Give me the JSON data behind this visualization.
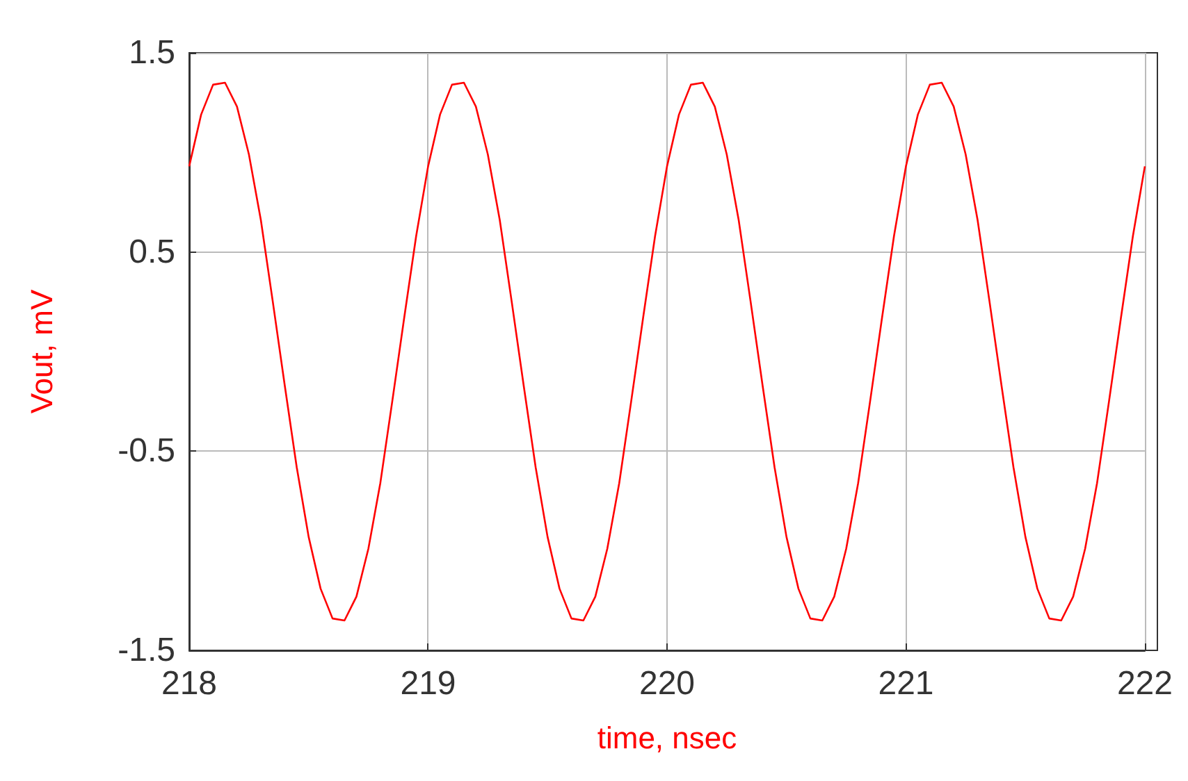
{
  "chart_data": {
    "type": "line",
    "xlabel": "time, nsec",
    "ylabel": "Vout, mV",
    "x": [
      218,
      218.05,
      218.1,
      218.15,
      218.2,
      218.25,
      218.3,
      218.35,
      218.4,
      218.45,
      218.5,
      218.55,
      218.6,
      218.65,
      218.7,
      218.75,
      218.8,
      218.85,
      218.9,
      218.95,
      219,
      219.05,
      219.1,
      219.15,
      219.2,
      219.25,
      219.3,
      219.35,
      219.4,
      219.45,
      219.5,
      219.55,
      219.6,
      219.65,
      219.7,
      219.75,
      219.8,
      219.85,
      219.9,
      219.95,
      220,
      220.05,
      220.1,
      220.15,
      220.2,
      220.25,
      220.3,
      220.35,
      220.4,
      220.45,
      220.5,
      220.55,
      220.6,
      220.65,
      220.7,
      220.75,
      220.8,
      220.85,
      220.9,
      220.95,
      221,
      221.05,
      221.1,
      221.15,
      221.2,
      221.25,
      221.3,
      221.35,
      221.4,
      221.45,
      221.5,
      221.55,
      221.6,
      221.65,
      221.7,
      221.75,
      221.8,
      221.85,
      221.9,
      221.95,
      222
    ],
    "series": [
      {
        "color": "#ff0000",
        "values": [
          0.93,
          1.19,
          1.34,
          1.35,
          1.23,
          0.99,
          0.66,
          0.25,
          -0.17,
          -0.58,
          -0.93,
          -1.19,
          -1.34,
          -1.35,
          -1.23,
          -0.99,
          -0.66,
          -0.25,
          0.17,
          0.58,
          0.93,
          1.19,
          1.34,
          1.35,
          1.23,
          0.99,
          0.66,
          0.25,
          -0.17,
          -0.58,
          -0.93,
          -1.19,
          -1.34,
          -1.35,
          -1.23,
          -0.99,
          -0.66,
          -0.25,
          0.17,
          0.58,
          0.93,
          1.19,
          1.34,
          1.35,
          1.23,
          0.99,
          0.66,
          0.25,
          -0.17,
          -0.58,
          -0.93,
          -1.19,
          -1.34,
          -1.35,
          -1.23,
          -0.99,
          -0.66,
          -0.25,
          0.17,
          0.58,
          0.93,
          1.19,
          1.34,
          1.35,
          1.23,
          0.99,
          0.66,
          0.25,
          -0.17,
          -0.58,
          -0.93,
          -1.19,
          -1.34,
          -1.35,
          -1.23,
          -0.99,
          -0.66,
          -0.25,
          0.17,
          0.58,
          0.93
        ]
      }
    ],
    "xlim": [
      218,
      222
    ],
    "xticks": [
      218,
      219,
      220,
      221,
      222
    ],
    "ylim": [
      -1.5,
      1.5
    ],
    "yticks": [
      -1.5,
      -0.5,
      0.5,
      1.5
    ],
    "grid": true,
    "marker": "none",
    "line_style": "solid"
  }
}
